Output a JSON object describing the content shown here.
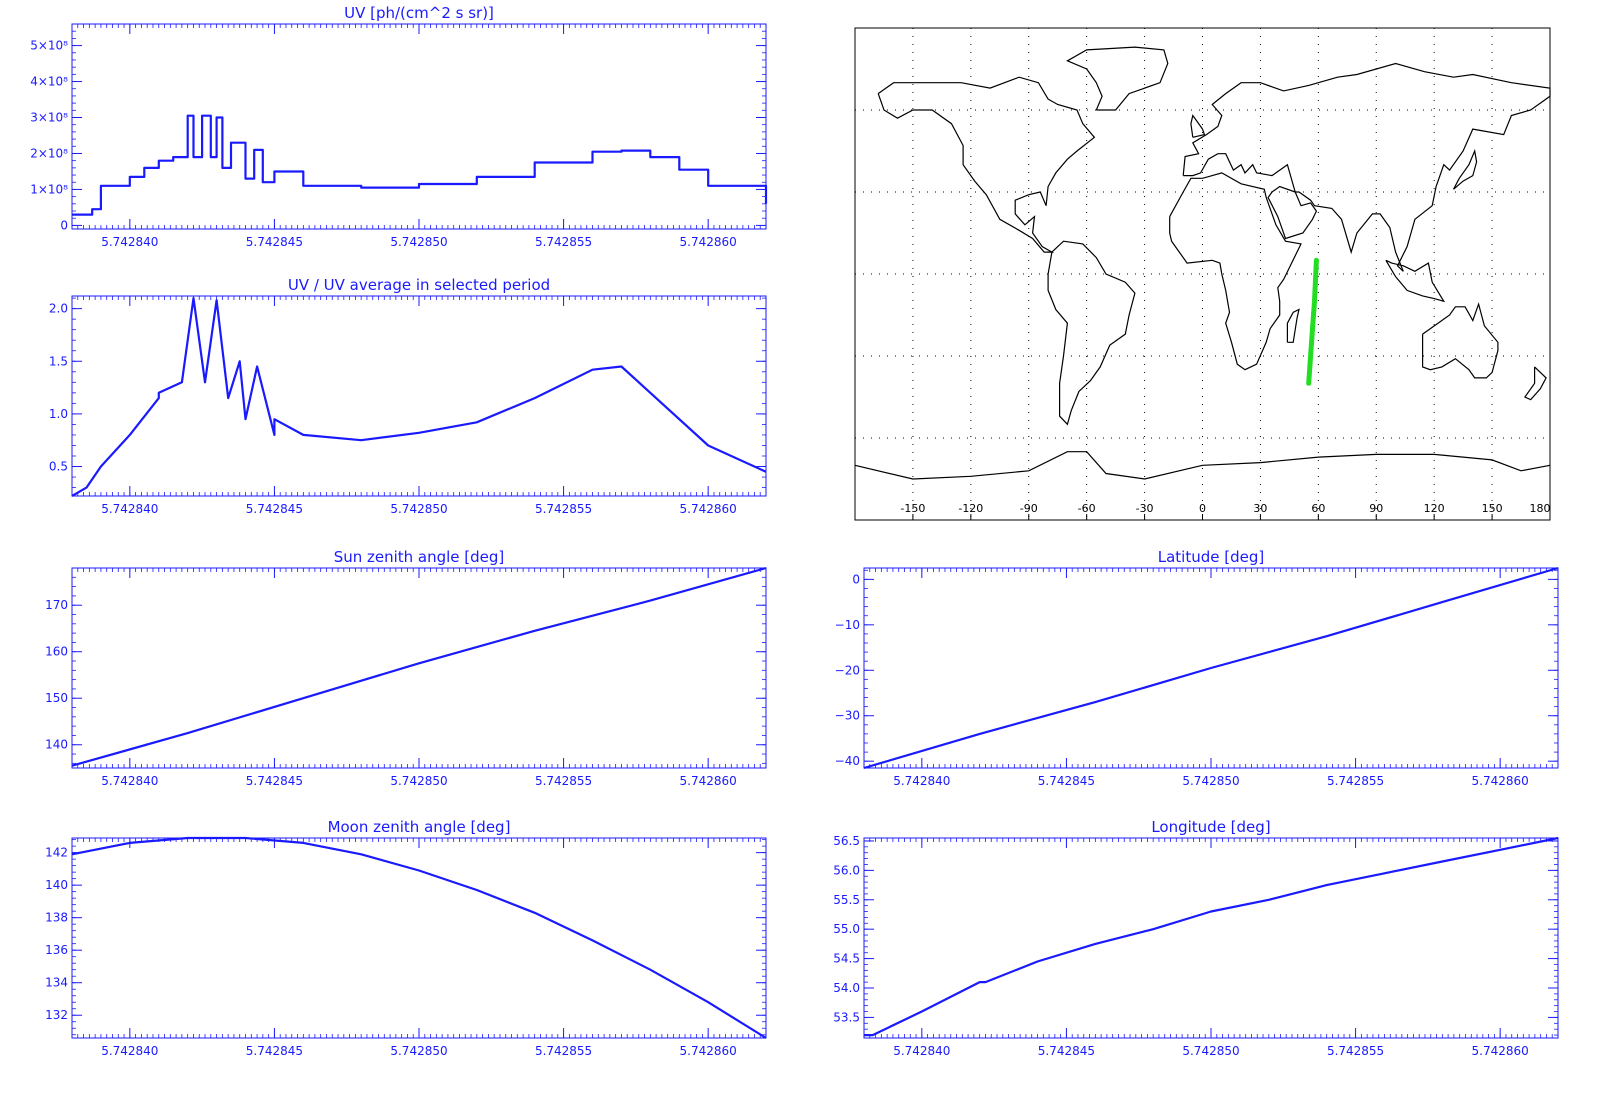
{
  "colors": {
    "axis": "#1a1aff",
    "line": "#1a1aff",
    "map_track": "#22dd22",
    "map_outline": "#000000"
  },
  "chart_data": [
    {
      "id": "uv",
      "type": "line",
      "step": true,
      "title": "UV [ph/(cm^2 s sr)]",
      "xlim": [
        5.742838,
        5.742862
      ],
      "xticks": [
        5.74284,
        5.742845,
        5.74285,
        5.742855,
        5.74286
      ],
      "xtick_labels": [
        "5.742840",
        "5.742845",
        "5.742850",
        "5.742855",
        "5.742860"
      ],
      "ylim": [
        -0.1,
        5.6
      ],
      "yticks": [
        0,
        1,
        2,
        3,
        4,
        5
      ],
      "ytick_labels": [
        "0",
        "1×10⁸",
        "2×10⁸",
        "3×10⁸",
        "4×10⁸",
        "5×10⁸"
      ],
      "series": [
        {
          "x": [
            5.742838,
            5.7428387,
            5.742839,
            5.7428395,
            5.74284,
            5.7428405,
            5.742841,
            5.7428415,
            5.742842,
            5.7428422,
            5.7428425,
            5.7428428,
            5.742843,
            5.7428432,
            5.7428435,
            5.742844,
            5.7428443,
            5.7428446,
            5.742845,
            5.742846,
            5.742848,
            5.74285,
            5.742852,
            5.742854,
            5.742856,
            5.742857,
            5.742858,
            5.742859,
            5.74286,
            5.742862
          ],
          "y": [
            0.3,
            0.45,
            1.1,
            1.1,
            1.35,
            1.6,
            1.8,
            1.9,
            3.05,
            1.9,
            3.05,
            1.9,
            3.0,
            1.6,
            2.3,
            1.3,
            2.1,
            1.2,
            1.5,
            1.1,
            1.05,
            1.15,
            1.35,
            1.75,
            2.05,
            2.08,
            1.9,
            1.55,
            1.1,
            0.6
          ]
        }
      ]
    },
    {
      "id": "uv_ratio",
      "type": "line",
      "title": "UV / UV average in selected period",
      "xlim": [
        5.742838,
        5.742862
      ],
      "xticks": [
        5.74284,
        5.742845,
        5.74285,
        5.742855,
        5.74286
      ],
      "xtick_labels": [
        "5.742840",
        "5.742845",
        "5.742850",
        "5.742855",
        "5.742860"
      ],
      "ylim": [
        0.22,
        2.12
      ],
      "yticks": [
        0.5,
        1.0,
        1.5,
        2.0
      ],
      "ytick_labels": [
        "0.5",
        "1.0",
        "1.5",
        "2.0"
      ],
      "series": [
        {
          "x": [
            5.742838,
            5.7428385,
            5.742839,
            5.74284,
            5.742841,
            5.742841,
            5.7428418,
            5.7428422,
            5.7428426,
            5.742843,
            5.7428434,
            5.7428438,
            5.742844,
            5.7428444,
            5.742845,
            5.742845,
            5.742846,
            5.742848,
            5.74285,
            5.742852,
            5.742854,
            5.742856,
            5.742857,
            5.742858,
            5.74286,
            5.742862
          ],
          "y": [
            0.22,
            0.3,
            0.5,
            0.8,
            1.15,
            1.2,
            1.3,
            2.1,
            1.3,
            2.08,
            1.15,
            1.5,
            0.95,
            1.45,
            0.8,
            0.95,
            0.8,
            0.75,
            0.82,
            0.92,
            1.15,
            1.42,
            1.45,
            1.2,
            0.7,
            0.45
          ]
        }
      ]
    },
    {
      "id": "sun_zenith",
      "type": "line",
      "title": "Sun zenith angle [deg]",
      "xlim": [
        5.742838,
        5.742862
      ],
      "xticks": [
        5.74284,
        5.742845,
        5.74285,
        5.742855,
        5.74286
      ],
      "xtick_labels": [
        "5.742840",
        "5.742845",
        "5.742850",
        "5.742855",
        "5.742860"
      ],
      "ylim": [
        135,
        178
      ],
      "yticks": [
        140,
        150,
        160,
        170
      ],
      "ytick_labels": [
        "140",
        "150",
        "160",
        "170"
      ],
      "series": [
        {
          "x": [
            5.742838,
            5.742842,
            5.742846,
            5.74285,
            5.742854,
            5.742858,
            5.742862
          ],
          "y": [
            135.5,
            142.5,
            150,
            157.5,
            164.5,
            171,
            178
          ]
        }
      ]
    },
    {
      "id": "latitude",
      "type": "line",
      "title": "Latitude [deg]",
      "xlim": [
        5.742838,
        5.742862
      ],
      "xticks": [
        5.74284,
        5.742845,
        5.74285,
        5.742855,
        5.74286
      ],
      "xtick_labels": [
        "5.742840",
        "5.742845",
        "5.742850",
        "5.742855",
        "5.742860"
      ],
      "ylim": [
        -41.5,
        2.5
      ],
      "yticks": [
        -40,
        -30,
        -20,
        -10,
        0
      ],
      "ytick_labels": [
        "−40",
        "−30",
        "−20",
        "−10",
        "0"
      ],
      "series": [
        {
          "x": [
            5.742838,
            5.742842,
            5.742846,
            5.74285,
            5.742854,
            5.742858,
            5.742862
          ],
          "y": [
            -41.5,
            -34,
            -27,
            -19.5,
            -12.5,
            -5,
            2.5
          ]
        }
      ]
    },
    {
      "id": "moon_zenith",
      "type": "line",
      "title": "Moon zenith angle [deg]",
      "xlim": [
        5.742838,
        5.742862
      ],
      "xticks": [
        5.74284,
        5.742845,
        5.74285,
        5.742855,
        5.74286
      ],
      "xtick_labels": [
        "5.742840",
        "5.742845",
        "5.742850",
        "5.742855",
        "5.742860"
      ],
      "ylim": [
        130.6,
        142.9
      ],
      "yticks": [
        132,
        134,
        136,
        138,
        140,
        142
      ],
      "ytick_labels": [
        "132",
        "134",
        "136",
        "138",
        "140",
        "142"
      ],
      "series": [
        {
          "x": [
            5.742838,
            5.74284,
            5.742842,
            5.742844,
            5.742846,
            5.742848,
            5.74285,
            5.742852,
            5.742854,
            5.742856,
            5.742858,
            5.74286,
            5.742862
          ],
          "y": [
            141.9,
            142.6,
            142.9,
            142.9,
            142.6,
            141.9,
            140.9,
            139.7,
            138.3,
            136.6,
            134.8,
            132.8,
            130.6
          ]
        }
      ]
    },
    {
      "id": "longitude",
      "type": "line",
      "title": "Longitude [deg]",
      "xlim": [
        5.742838,
        5.742862
      ],
      "xticks": [
        5.74284,
        5.742845,
        5.74285,
        5.742855,
        5.74286
      ],
      "xtick_labels": [
        "5.742840",
        "5.742845",
        "5.742850",
        "5.742855",
        "5.742860"
      ],
      "ylim": [
        53.15,
        56.55
      ],
      "yticks": [
        53.5,
        54.0,
        54.5,
        55.0,
        55.5,
        56.0,
        56.5
      ],
      "ytick_labels": [
        "53.5",
        "54.0",
        "54.5",
        "55.0",
        "55.5",
        "56.0",
        "56.5"
      ],
      "series": [
        {
          "x": [
            5.742838,
            5.7428383,
            5.74284,
            5.742842,
            5.7428422,
            5.742844,
            5.742846,
            5.742848,
            5.74285,
            5.742852,
            5.742854,
            5.742856,
            5.742858,
            5.74286,
            5.742862
          ],
          "y": [
            53.2,
            53.2,
            53.6,
            54.1,
            54.1,
            54.45,
            54.75,
            55.0,
            55.3,
            55.5,
            55.75,
            55.95,
            56.15,
            56.35,
            56.55
          ]
        }
      ]
    }
  ],
  "map": {
    "xlim": [
      -180,
      180
    ],
    "ylim": [
      -90,
      90
    ],
    "lon_ticks": [
      "-150",
      "-120",
      "-90",
      "-60",
      "-30",
      "0",
      "30",
      "60",
      "90",
      "120",
      "150",
      "180"
    ],
    "track": {
      "lon": [
        59,
        58,
        57,
        56,
        55
      ],
      "lat": [
        5,
        -10,
        -20,
        -30,
        -40
      ]
    }
  }
}
